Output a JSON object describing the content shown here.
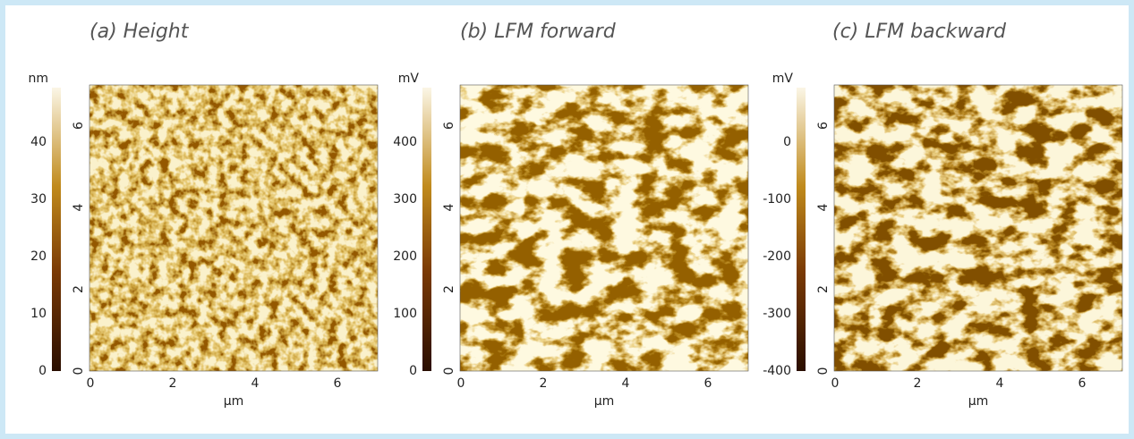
{
  "panels": [
    {
      "title": "(a) Height",
      "unit": "nm",
      "colorbar_ticks": [
        "0",
        "10",
        "20",
        "30",
        "40"
      ],
      "y_ticks": [
        "0",
        "2",
        "4",
        "6"
      ],
      "x_ticks": [
        "0",
        "2",
        "4",
        "6"
      ],
      "x_label": "μm"
    },
    {
      "title": "(b) LFM forward",
      "unit": "mV",
      "colorbar_ticks": [
        "0",
        "100",
        "200",
        "300",
        "400"
      ],
      "y_ticks": [
        "0",
        "2",
        "4",
        "6"
      ],
      "x_ticks": [
        "0",
        "2",
        "4",
        "6"
      ],
      "x_label": "μm"
    },
    {
      "title": "(c) LFM backward",
      "unit": "mV",
      "colorbar_ticks": [
        "-400",
        "-300",
        "-200",
        "-100",
        "0"
      ],
      "y_ticks": [
        "0",
        "2",
        "4",
        "6"
      ],
      "x_ticks": [
        "0",
        "2",
        "4",
        "6"
      ],
      "x_label": "μm"
    }
  ]
}
